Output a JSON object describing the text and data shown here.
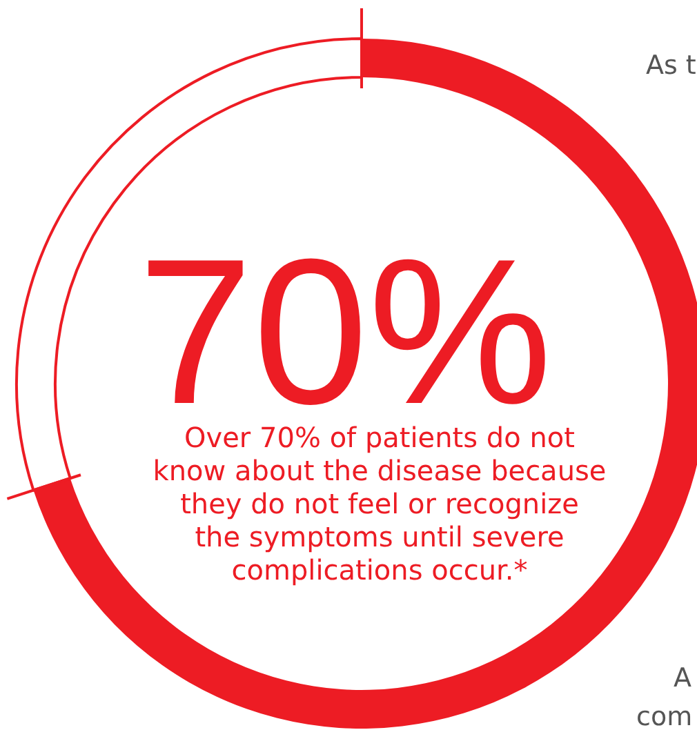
{
  "chart_data": {
    "type": "donut",
    "categories": [
      null,
      null
    ],
    "values": [
      70,
      30
    ],
    "colors": [
      "#ed1c24",
      "#ffffff"
    ],
    "annotations": [
      "70%",
      "Over 70% of patients do not\nknow about the disease because\nthey do not feel or recognize\nthe symptoms until severe\ncomplications occur.*",
      "As t",
      "A",
      "com"
    ]
  }
}
